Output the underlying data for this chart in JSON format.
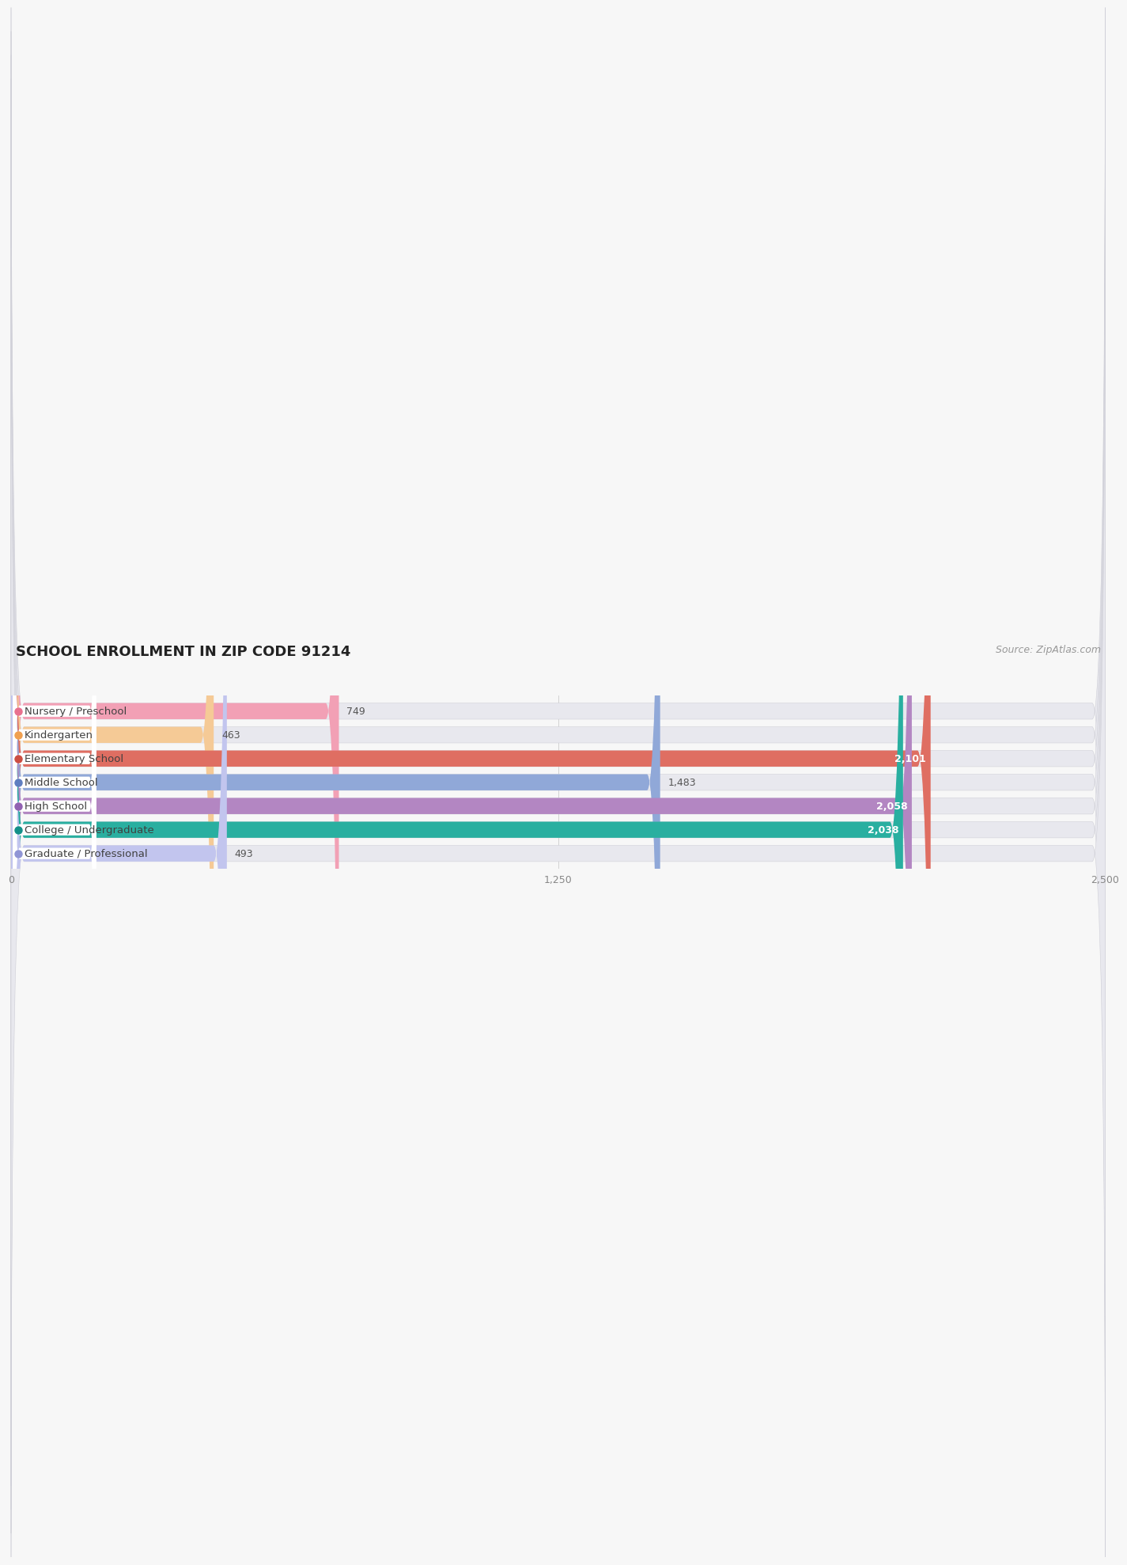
{
  "title": "SCHOOL ENROLLMENT IN ZIP CODE 91214",
  "source": "Source: ZipAtlas.com",
  "categories": [
    "Nursery / Preschool",
    "Kindergarten",
    "Elementary School",
    "Middle School",
    "High School",
    "College / Undergraduate",
    "Graduate / Professional"
  ],
  "values": [
    749,
    463,
    2101,
    1483,
    2058,
    2038,
    493
  ],
  "bar_colors": [
    "#f2a0b5",
    "#f5ca96",
    "#df6e62",
    "#90a8d8",
    "#b386c2",
    "#29afa0",
    "#c2c5ee"
  ],
  "label_dot_colors": [
    "#e8708e",
    "#f0a050",
    "#cc4e42",
    "#5f7ec0",
    "#9262b2",
    "#149088",
    "#9095d5"
  ],
  "xlim": [
    0,
    2500
  ],
  "xticks": [
    0,
    1250,
    2500
  ],
  "bar_height": 0.68,
  "background_color": "#f7f7f7",
  "bar_bg_color": "#e8e8ee",
  "title_fontsize": 13,
  "label_fontsize": 9.5,
  "value_fontsize": 9,
  "source_fontsize": 9
}
